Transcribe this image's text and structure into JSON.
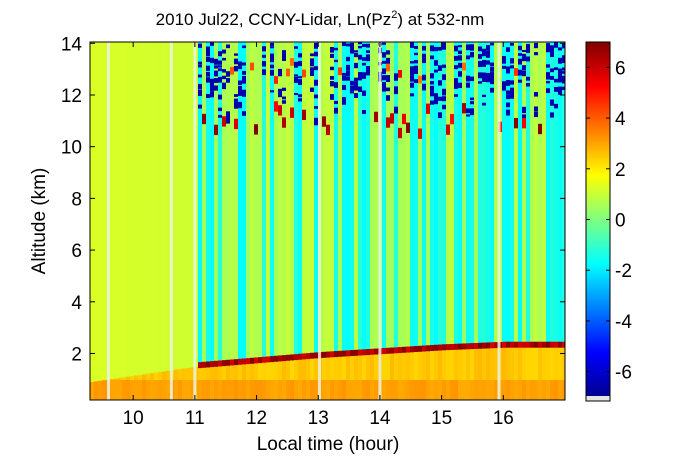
{
  "chart_data": {
    "type": "heatmap",
    "title": {
      "prefix": "2010 Jul22, CCNY-Lidar, Ln(Pz",
      "superscript": "2",
      "suffix": ") at 532-nm"
    },
    "xlabel": "Local time (hour)",
    "ylabel": "Altitude (km)",
    "xlim": [
      9.3,
      17.0
    ],
    "ylim": [
      0.2,
      14.05
    ],
    "xticks": [
      10,
      11,
      12,
      13,
      14,
      15,
      16
    ],
    "yticks": [
      2,
      4,
      6,
      8,
      10,
      12,
      14
    ],
    "colorbar": {
      "range": [
        -7.0,
        7.0
      ],
      "ticks": [
        6,
        4,
        2,
        0,
        -2,
        -4,
        -6
      ],
      "colormap": "jet",
      "colors": [
        "#00008f",
        "#0000ff",
        "#00ffff",
        "#7fff7f",
        "#ffff00",
        "#ff0000",
        "#7f0000"
      ]
    },
    "features": {
      "boundary_layer_top_km": [
        {
          "time": 11.0,
          "value": 1.5
        },
        {
          "time": 12.0,
          "value": 1.7
        },
        {
          "time": 13.0,
          "value": 1.9
        },
        {
          "time": 14.0,
          "value": 2.05
        },
        {
          "time": 15.0,
          "value": 2.2
        },
        {
          "time": 16.0,
          "value": 2.3
        },
        {
          "time": 16.9,
          "value": 2.3
        }
      ],
      "cloud_layer_km": [
        9.0,
        13.4
      ],
      "data_gaps_hour": [
        9.6,
        10.62,
        11.0,
        13.02,
        14.0,
        15.93
      ]
    }
  }
}
